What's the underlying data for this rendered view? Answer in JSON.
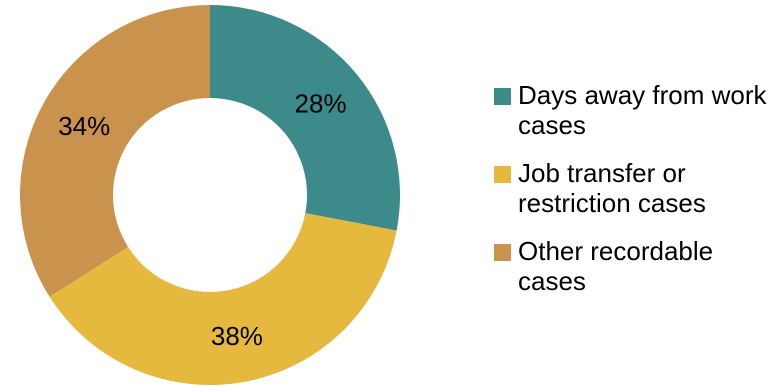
{
  "chart_data": {
    "type": "pie",
    "variant": "donut",
    "categories": [
      "Days away from work cases",
      "Job transfer or restriction cases",
      "Other recordable cases"
    ],
    "values": [
      28,
      38,
      34
    ],
    "labels": [
      "28%",
      "38%",
      "34%"
    ],
    "colors": [
      "#3d8a8a",
      "#e5b83e",
      "#c9924d"
    ],
    "legend": {
      "position": "right",
      "entries": [
        "Days away from work cases",
        "Job transfer or restriction cases",
        "Other recordable cases"
      ]
    }
  }
}
